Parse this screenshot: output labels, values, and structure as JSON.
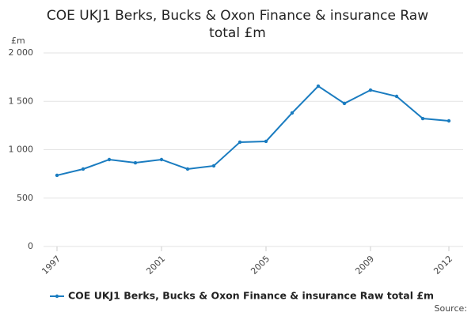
{
  "chart_data": {
    "type": "line",
    "title": "COE UKJ1 Berks, Bucks & Oxon Finance & insurance Raw total £m",
    "y_label": "£m",
    "source": "Source:",
    "x": [
      1997,
      1998,
      1999,
      2000,
      2001,
      2002,
      2003,
      2004,
      2005,
      2006,
      2007,
      2008,
      2009,
      2010,
      2011,
      2012
    ],
    "series": [
      {
        "name": "COE UKJ1 Berks, Bucks & Oxon Finance & insurance Raw total £m",
        "color": "#1a7cc0",
        "values": [
          735,
          800,
          898,
          865,
          898,
          800,
          833,
          1078,
          1086,
          1380,
          1657,
          1478,
          1616,
          1551,
          1322,
          1298
        ]
      }
    ],
    "xlim": [
      1997,
      2012
    ],
    "xticks": [
      1997,
      2001,
      2005,
      2009,
      2012
    ],
    "ylim": [
      0,
      2000
    ],
    "yticks": [
      0,
      500,
      {
        "value": 1000,
        "label": "1 000"
      },
      {
        "value": 1500,
        "label": "1 500"
      },
      {
        "value": 2000,
        "label": "2 000"
      }
    ],
    "grid": true
  }
}
